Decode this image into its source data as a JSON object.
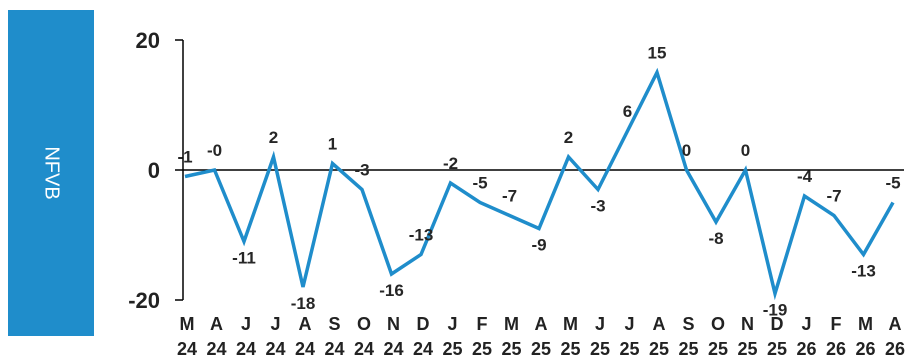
{
  "side_label": "NFVB",
  "colors": {
    "series": "#1f8dcb",
    "panel": "#1f8dcb",
    "axis": "#000000"
  },
  "chart_data": {
    "type": "line",
    "title": "",
    "xlabel": "",
    "ylabel": "",
    "ylim": [
      -20,
      20
    ],
    "yticks": [
      -20,
      0,
      20
    ],
    "grid": false,
    "legend": "none",
    "categories": [
      {
        "month": "M",
        "year": "24"
      },
      {
        "month": "A",
        "year": "24"
      },
      {
        "month": "J",
        "year": "24"
      },
      {
        "month": "J",
        "year": "24"
      },
      {
        "month": "A",
        "year": "24"
      },
      {
        "month": "S",
        "year": "24"
      },
      {
        "month": "O",
        "year": "24"
      },
      {
        "month": "N",
        "year": "24"
      },
      {
        "month": "D",
        "year": "24"
      },
      {
        "month": "J",
        "year": "25"
      },
      {
        "month": "F",
        "year": "25"
      },
      {
        "month": "M",
        "year": "25"
      },
      {
        "month": "A",
        "year": "25"
      },
      {
        "month": "M",
        "year": "25"
      },
      {
        "month": "J",
        "year": "25"
      },
      {
        "month": "J",
        "year": "25"
      },
      {
        "month": "A",
        "year": "25"
      },
      {
        "month": "S",
        "year": "25"
      },
      {
        "month": "O",
        "year": "25"
      },
      {
        "month": "N",
        "year": "25"
      },
      {
        "month": "D",
        "year": "25"
      },
      {
        "month": "J",
        "year": "26"
      },
      {
        "month": "F",
        "year": "26"
      },
      {
        "month": "M",
        "year": "26"
      },
      {
        "month": "A",
        "year": "26"
      }
    ],
    "points": [
      {
        "x": 0,
        "y": -1,
        "label": "-1"
      },
      {
        "x": 0.5,
        "y": 0,
        "label": "-0"
      },
      {
        "x": 1,
        "y": -11,
        "label": "-11"
      },
      {
        "x": 1.5,
        "y": 2,
        "label": "2"
      },
      {
        "x": 2,
        "y": -18,
        "label": "-18"
      },
      {
        "x": 2.5,
        "y": 1,
        "label": "1"
      },
      {
        "x": 3,
        "y": -3,
        "label": "-3"
      },
      {
        "x": 3.5,
        "y": -16,
        "label": "-16"
      },
      {
        "x": 4,
        "y": -13,
        "label": "-13"
      },
      {
        "x": 4.5,
        "y": -2,
        "label": "-2"
      },
      {
        "x": 5,
        "y": -5,
        "label": "-5"
      },
      {
        "x": 5.5,
        "y": -7,
        "label": "-7"
      },
      {
        "x": 6,
        "y": -9,
        "label": "-9"
      },
      {
        "x": 6.5,
        "y": 2,
        "label": "2"
      },
      {
        "x": 7,
        "y": -3,
        "label": "-3"
      },
      {
        "x": 7.5,
        "y": 6,
        "label": "6"
      },
      {
        "x": 8,
        "y": 15,
        "label": "15"
      },
      {
        "x": 8.5,
        "y": 0,
        "label": "0"
      },
      {
        "x": 9,
        "y": -8,
        "label": "-8"
      },
      {
        "x": 9.5,
        "y": 0,
        "label": "0"
      },
      {
        "x": 10,
        "y": -19,
        "label": "-19"
      },
      {
        "x": 10.5,
        "y": -4,
        "label": "-4"
      },
      {
        "x": 11,
        "y": -7,
        "label": "-7"
      },
      {
        "x": 11.5,
        "y": -13,
        "label": "-13"
      },
      {
        "x": 12,
        "y": -5,
        "label": "-5"
      }
    ]
  }
}
